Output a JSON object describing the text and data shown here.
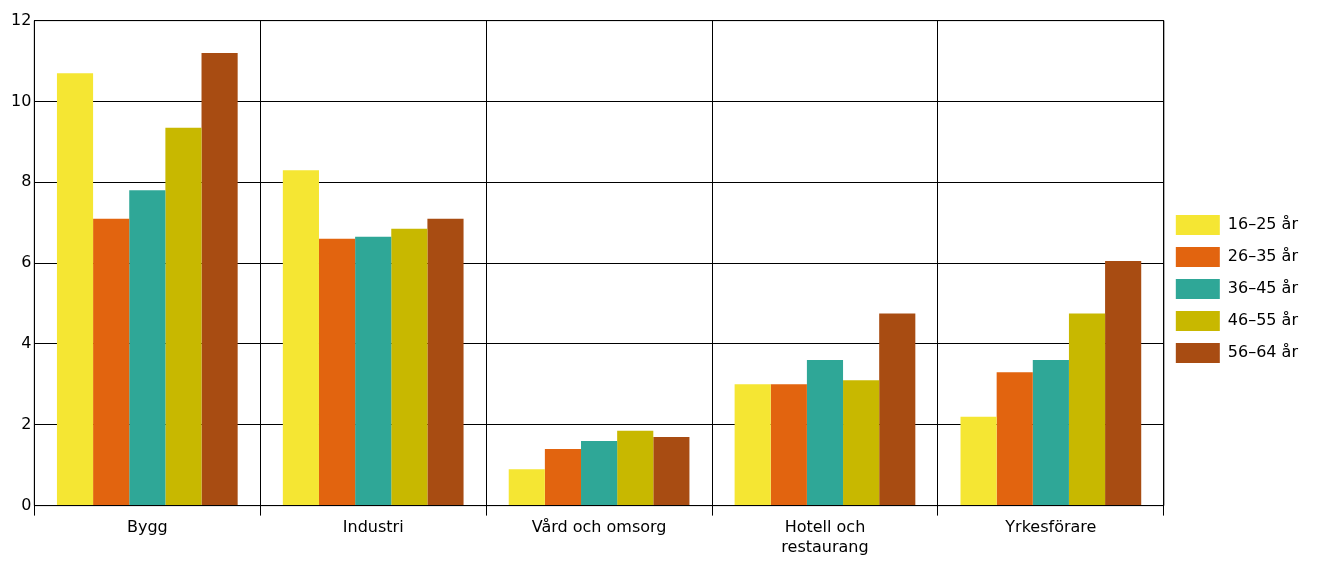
{
  "chart_data": {
    "type": "bar",
    "categories": [
      "Bygg",
      "Industri",
      "Vård och omsorg",
      "Hotell och restaurang",
      "Yrkesförare"
    ],
    "series": [
      {
        "name": "16–25 år",
        "color": "#f5e633",
        "values": [
          10.7,
          8.3,
          0.9,
          3.0,
          2.2
        ]
      },
      {
        "name": "26–35 år",
        "color": "#e2640f",
        "values": [
          7.1,
          6.6,
          1.4,
          3.0,
          3.3
        ]
      },
      {
        "name": "36–45 år",
        "color": "#2fa797",
        "values": [
          7.8,
          6.65,
          1.6,
          3.6,
          3.6
        ]
      },
      {
        "name": "46–55 år",
        "color": "#c8b800",
        "values": [
          9.35,
          6.85,
          1.85,
          3.1,
          4.75
        ]
      },
      {
        "name": "56–64 år",
        "color": "#a84c12",
        "values": [
          11.2,
          7.1,
          1.7,
          4.75,
          6.05
        ]
      }
    ],
    "ylim": [
      0,
      12
    ],
    "yticks": [
      0,
      2,
      4,
      6,
      8,
      10,
      12
    ],
    "grid": true,
    "legend": "right"
  }
}
